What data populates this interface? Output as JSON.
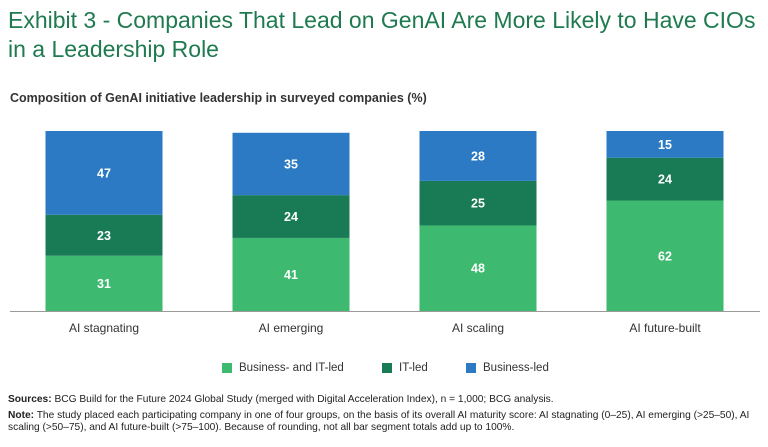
{
  "header": {
    "title": "Exhibit 3 - Companies That Lead on GenAI Are More Likely to Have CIOs in a Leadership Role",
    "subtitle": "Composition of GenAI initiative leadership in surveyed companies (%)"
  },
  "chart_data": {
    "type": "bar",
    "stacked": true,
    "title": "Composition of GenAI initiative leadership in surveyed companies (%)",
    "xlabel": "",
    "ylabel": "",
    "ylim": [
      0,
      101
    ],
    "categories": [
      "AI stagnating",
      "AI emerging",
      "AI scaling",
      "AI future-built"
    ],
    "series": [
      {
        "name": "Business- and IT-led",
        "color": "#3dba6f",
        "values": [
          31,
          41,
          48,
          62
        ]
      },
      {
        "name": "IT-led",
        "color": "#197a56",
        "values": [
          23,
          24,
          25,
          24
        ]
      },
      {
        "name": "Business-led",
        "color": "#2b7ac3",
        "values": [
          47,
          35,
          28,
          15
        ]
      }
    ],
    "legend_position": "bottom"
  },
  "footer": {
    "sources_label": "Sources:",
    "sources_text": "BCG Build for the Future 2024 Global Study (merged with Digital Acceleration Index), n = 1,000; BCG analysis.",
    "note_label": "Note:",
    "note_text": "The study placed each participating company in one of four groups, on the basis of its overall AI maturity score: AI stagnating (0–25), AI emerging (>25–50), AI scaling (>50–75), and AI future-built (>75–100). Because of rounding, not all bar segment totals add up to 100%."
  }
}
